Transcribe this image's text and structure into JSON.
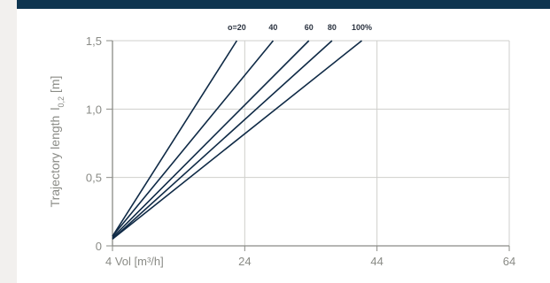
{
  "colors": {
    "top_bar": "#0f3550",
    "line": "#0f2a46",
    "grid": "#cfcfcc",
    "axis": "#8a8b86",
    "text": "#8a8b86",
    "background": "#f2f0ee",
    "plot_background": "#ffffff"
  },
  "chart_data": {
    "type": "line",
    "title": "",
    "ylabel_main": "Trajectory length",
    "ylabel_var": "l",
    "ylabel_sub": "0,2",
    "ylabel_unit": "[m]",
    "xlabel": "Vol [m³/h]",
    "x_ticks": [
      4,
      24,
      44,
      64
    ],
    "x_tick_labels": [
      "4 Vol [m³/h]",
      "24",
      "44",
      "64"
    ],
    "y_ticks": [
      0,
      0.5,
      1.0,
      1.5
    ],
    "y_tick_labels": [
      "0",
      "0,5",
      "1,0",
      "1,5"
    ],
    "xlim": [
      4,
      64
    ],
    "ylim": [
      0,
      1.5
    ],
    "grid": true,
    "legend": "labels at line ends, top",
    "series": [
      {
        "name": "o=20",
        "label": "o=20",
        "x": [
          4,
          22.8
        ],
        "y": [
          0.07,
          1.5
        ]
      },
      {
        "name": "40",
        "label": "40",
        "x": [
          4,
          28.3
        ],
        "y": [
          0.07,
          1.5
        ]
      },
      {
        "name": "60",
        "label": "60",
        "x": [
          4,
          33.7
        ],
        "y": [
          0.06,
          1.5
        ]
      },
      {
        "name": "80",
        "label": "80",
        "x": [
          4,
          37.2
        ],
        "y": [
          0.05,
          1.5
        ]
      },
      {
        "name": "100%",
        "label": "100%",
        "x": [
          4,
          41.7
        ],
        "y": [
          0.05,
          1.5
        ]
      }
    ]
  }
}
